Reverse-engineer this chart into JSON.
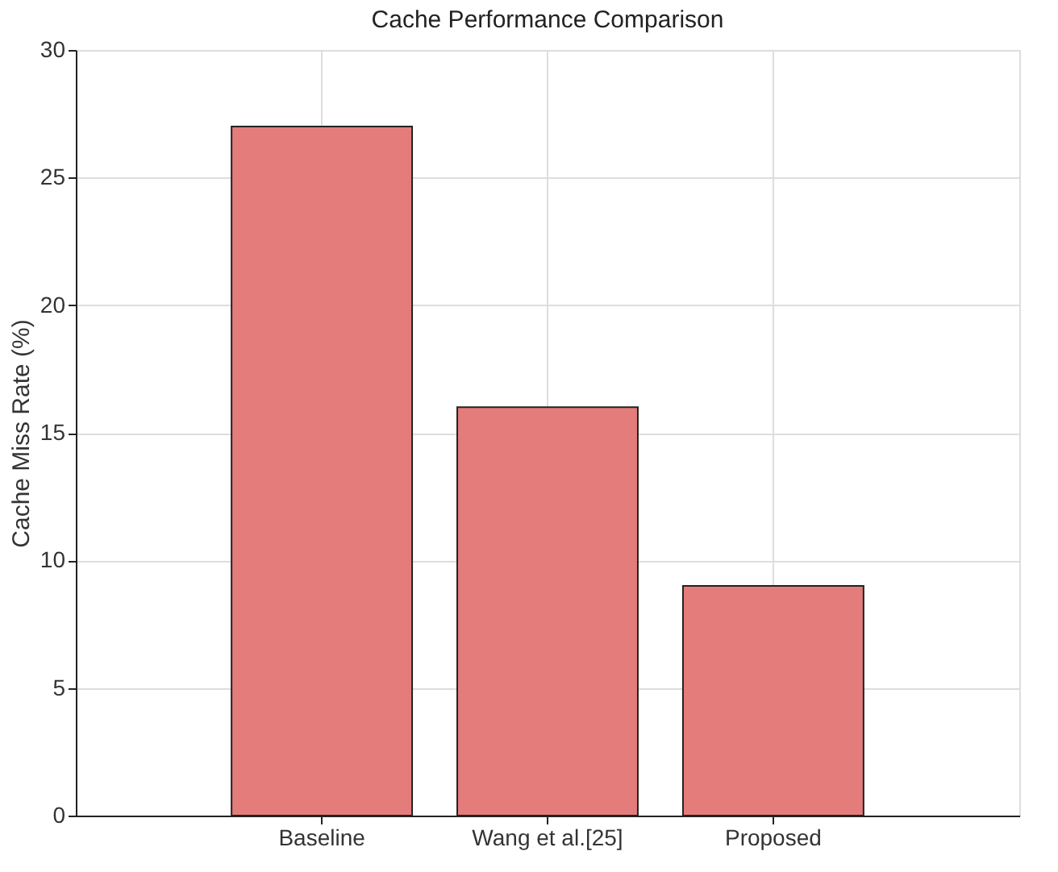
{
  "chart_data": {
    "type": "bar",
    "title": "Cache Performance Comparison",
    "ylabel": "Cache Miss Rate (%)",
    "categories": [
      "Baseline",
      "Wang et al.[25]",
      "Proposed"
    ],
    "values": [
      27,
      16,
      9
    ],
    "color": "#e57c7c",
    "ylim": [
      0,
      30
    ],
    "yticks": [
      0,
      5,
      10,
      15,
      20,
      25,
      30
    ],
    "grid": true
  }
}
